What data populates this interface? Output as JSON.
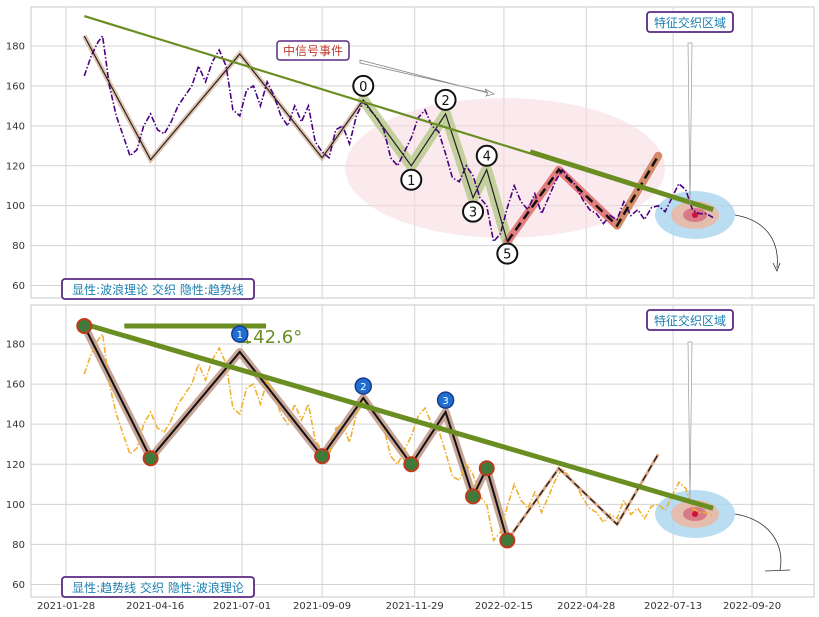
{
  "chart_data": [
    {
      "type": "line",
      "panel_caption": "显性:波浪理论 交织 隐性:趋势线",
      "ylim": [
        55,
        200
      ],
      "yticks": [
        60,
        80,
        100,
        120,
        140,
        160,
        180
      ],
      "grid": true,
      "series": [
        {
          "role": "price",
          "style": "dash-dot",
          "color": "#4b0082",
          "x": [
            "2021-02-13",
            "2021-02-19",
            "2021-02-25",
            "2021-03-01",
            "2021-03-07",
            "2021-03-13",
            "2021-03-19",
            "2021-03-25",
            "2021-03-31",
            "2021-04-06",
            "2021-04-12",
            "2021-04-18",
            "2021-04-24",
            "2021-04-30",
            "2021-05-06",
            "2021-05-12",
            "2021-05-18",
            "2021-05-24",
            "2021-05-30",
            "2021-06-05",
            "2021-06-11",
            "2021-06-17",
            "2021-06-23",
            "2021-06-29",
            "2021-07-05",
            "2021-07-11",
            "2021-07-17",
            "2021-07-23",
            "2021-07-29",
            "2021-08-04",
            "2021-08-10",
            "2021-08-16",
            "2021-08-22",
            "2021-08-28",
            "2021-09-03",
            "2021-09-09",
            "2021-09-15",
            "2021-09-21",
            "2021-09-27",
            "2021-10-03",
            "2021-10-09",
            "2021-10-15",
            "2021-10-21",
            "2021-10-27",
            "2021-11-02",
            "2021-11-08",
            "2021-11-14",
            "2021-11-20",
            "2021-11-26",
            "2021-12-02",
            "2021-12-08",
            "2021-12-14",
            "2021-12-20",
            "2021-12-26",
            "2022-01-01",
            "2022-01-07",
            "2022-01-13",
            "2022-01-19",
            "2022-01-25",
            "2022-01-31",
            "2022-02-06",
            "2022-02-12",
            "2022-02-18",
            "2022-02-24",
            "2022-03-02",
            "2022-03-08",
            "2022-03-14",
            "2022-03-20",
            "2022-03-26",
            "2022-04-01",
            "2022-04-07",
            "2022-04-13",
            "2022-04-19",
            "2022-04-25",
            "2022-05-01",
            "2022-05-07",
            "2022-05-13",
            "2022-05-19",
            "2022-05-25",
            "2022-05-31",
            "2022-06-06",
            "2022-06-12",
            "2022-06-18",
            "2022-06-24",
            "2022-06-30",
            "2022-07-06",
            "2022-07-12",
            "2022-07-18",
            "2022-07-24",
            "2022-07-30",
            "2022-08-05",
            "2022-08-11",
            "2022-08-17"
          ],
          "values": [
            165,
            175,
            182,
            185,
            160,
            145,
            135,
            125,
            128,
            140,
            146,
            138,
            136,
            142,
            150,
            155,
            160,
            170,
            162,
            172,
            178,
            170,
            148,
            145,
            158,
            160,
            150,
            162,
            155,
            145,
            140,
            150,
            142,
            150,
            132,
            127,
            124,
            138,
            140,
            131,
            145,
            152,
            148,
            144,
            138,
            124,
            120,
            127,
            134,
            144,
            148,
            140,
            137,
            126,
            114,
            112,
            120,
            115,
            104,
            100,
            82,
            86,
            99,
            110,
            102,
            98,
            106,
            96,
            104,
            112,
            118,
            114,
            110,
            103,
            98,
            96,
            91,
            95,
            93,
            102,
            95,
            98,
            93,
            99,
            100,
            97,
            104,
            111,
            108,
            98,
            96,
            96,
            94
          ]
        }
      ],
      "trendline": {
        "color": "#6b8e23",
        "x": [
          "2021-02-13",
          "2022-08-17"
        ],
        "values": [
          195,
          98
        ]
      },
      "zigzag": {
        "x": [
          "2021-02-13",
          "2021-04-12",
          "2021-06-29",
          "2021-09-09",
          "2021-10-15",
          "2021-11-26",
          "2021-12-26",
          "2022-01-19",
          "2022-01-31",
          "2022-02-18"
        ],
        "values": [
          185,
          123,
          176,
          124,
          153,
          120,
          146,
          104,
          118,
          82
        ]
      },
      "wave_labels": [
        "0",
        "1",
        "2",
        "3",
        "4",
        "5"
      ],
      "projection": {
        "x": [
          "2022-02-18",
          "2022-04-04",
          "2022-05-25",
          "2022-06-30"
        ],
        "values": [
          82,
          118,
          90,
          125
        ]
      },
      "annotations": {
        "signal_event": "中信号事件",
        "feature_zone": "特征交织区域"
      }
    },
    {
      "type": "line",
      "panel_caption": "显性:趋势线 交织 隐性:波浪理论",
      "ylim": [
        55,
        200
      ],
      "yticks": [
        60,
        80,
        100,
        120,
        140,
        160,
        180
      ],
      "grid": true,
      "price_style": "dash-dot",
      "price_color": "#f0b030",
      "trendline": {
        "color": "#6b8e23",
        "x": [
          "2021-02-13",
          "2022-08-17"
        ],
        "values": [
          190,
          98
        ]
      },
      "angle_label": "∡42.6°",
      "pivot_numbers": [
        "1",
        "2",
        "3"
      ],
      "annotations": {
        "feature_zone": "特征交织区域"
      }
    }
  ],
  "x_axis": {
    "ticks": [
      "2021-01-28",
      "2021-04-16",
      "2021-07-01",
      "2021-09-09",
      "2021-11-29",
      "2022-02-15",
      "2022-04-28",
      "2022-07-13",
      "2022-09-20"
    ]
  }
}
